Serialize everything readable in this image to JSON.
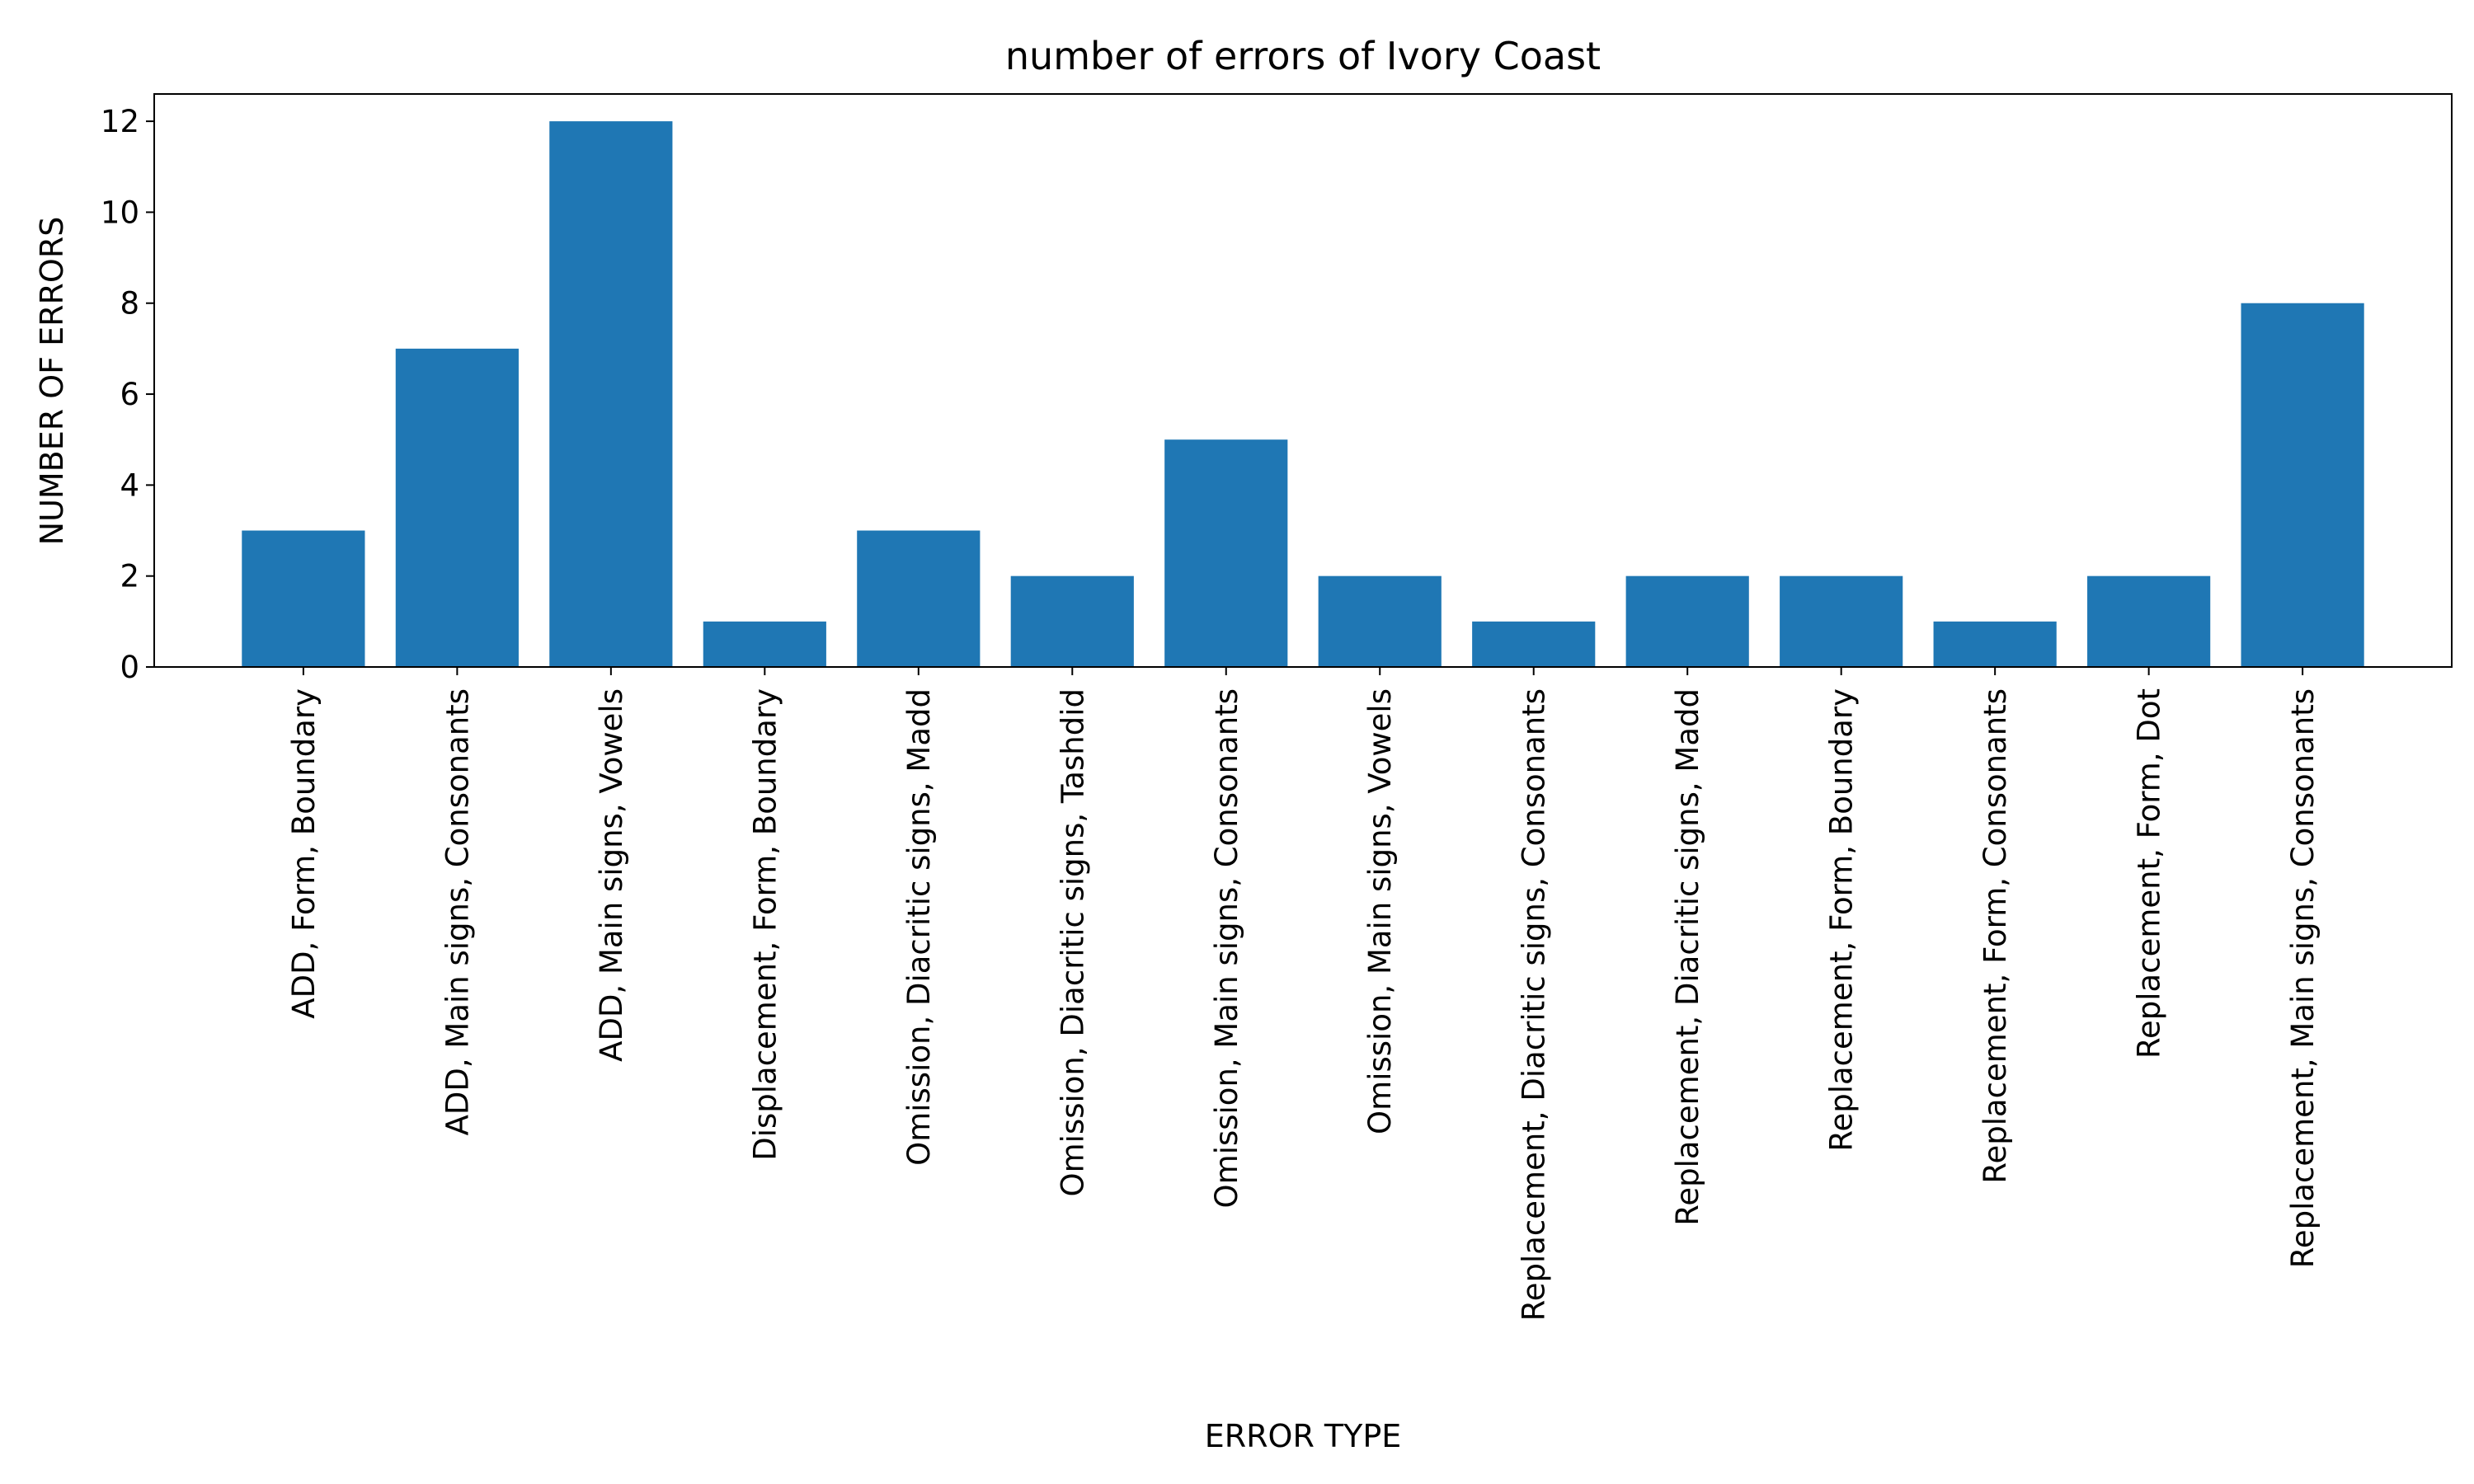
{
  "chart_data": {
    "type": "bar",
    "title": "number of errors of Ivory Coast",
    "xlabel": "ERROR TYPE",
    "ylabel": "NUMBER OF ERRORS",
    "categories": [
      "ADD, Form, Boundary",
      "ADD, Main signs, Consonants",
      "ADD, Main signs, Vowels",
      "Displacement, Form, Boundary",
      "Omission, Diacritic signs, Madd",
      "Omission, Diacritic signs, Tashdid",
      "Omission, Main signs, Consonants",
      "Omission, Main signs, Vowels",
      "Replacement, Diacritic signs, Consonants",
      "Replacement, Diacritic signs, Madd",
      "Replacement, Form, Boundary",
      "Replacement, Form, Consonants",
      "Replacement, Form, Dot",
      "Replacement, Main signs, Consonants"
    ],
    "values": [
      3,
      7,
      12,
      1,
      3,
      2,
      5,
      2,
      1,
      2,
      2,
      1,
      2,
      8
    ],
    "ylim": [
      0,
      12.6
    ],
    "yticks": [
      0,
      2,
      4,
      6,
      8,
      10,
      12
    ],
    "bar_color": "#1f77b4",
    "grid": false,
    "legend": "none"
  }
}
